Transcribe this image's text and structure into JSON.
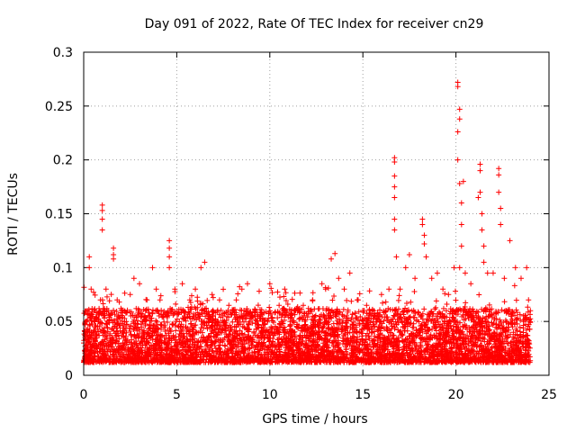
{
  "chart_data": {
    "type": "scatter",
    "title": "Day 091 of 2022, Rate Of TEC Index for receiver cn29",
    "xlabel": "GPS time / hours",
    "ylabel": "ROTI / TECUs",
    "xlim": [
      0,
      25
    ],
    "ylim": [
      0,
      0.3
    ],
    "x_ticks": [
      "0",
      "5",
      "10",
      "15",
      "20",
      "25"
    ],
    "y_ticks": [
      "0",
      "0.05",
      "0.1",
      "0.15",
      "0.2",
      "0.25",
      "0.3"
    ],
    "grid": true,
    "marker": "plus",
    "color": "#ff0000",
    "baseline_points": [
      [
        0.0,
        0.03
      ],
      [
        0.2,
        0.06
      ],
      [
        0.3,
        0.11
      ],
      [
        0.3,
        0.1
      ],
      [
        0.4,
        0.08
      ],
      [
        0.6,
        0.05
      ],
      [
        0.9,
        0.07
      ],
      [
        1.0,
        0.158
      ],
      [
        1.0,
        0.153
      ],
      [
        1.0,
        0.145
      ],
      [
        1.0,
        0.135
      ],
      [
        1.2,
        0.08
      ],
      [
        1.6,
        0.118
      ],
      [
        1.6,
        0.112
      ],
      [
        1.6,
        0.108
      ],
      [
        1.8,
        0.07
      ],
      [
        2.0,
        0.062
      ],
      [
        2.5,
        0.075
      ],
      [
        2.7,
        0.09
      ],
      [
        3.0,
        0.085
      ],
      [
        3.4,
        0.07
      ],
      [
        3.7,
        0.1
      ],
      [
        3.9,
        0.08
      ],
      [
        4.1,
        0.07
      ],
      [
        4.6,
        0.125
      ],
      [
        4.6,
        0.118
      ],
      [
        4.6,
        0.11
      ],
      [
        4.6,
        0.1
      ],
      [
        4.9,
        0.08
      ],
      [
        5.3,
        0.085
      ],
      [
        5.7,
        0.07
      ],
      [
        6.0,
        0.08
      ],
      [
        6.3,
        0.1
      ],
      [
        6.5,
        0.105
      ],
      [
        6.9,
        0.075
      ],
      [
        7.3,
        0.07
      ],
      [
        7.8,
        0.065
      ],
      [
        8.2,
        0.07
      ],
      [
        8.5,
        0.08
      ],
      [
        8.8,
        0.085
      ],
      [
        9.2,
        0.06
      ],
      [
        9.6,
        0.05
      ],
      [
        10.0,
        0.085
      ],
      [
        10.5,
        0.065
      ],
      [
        10.8,
        0.08
      ],
      [
        11.3,
        0.06
      ],
      [
        11.8,
        0.065
      ],
      [
        12.3,
        0.07
      ],
      [
        12.8,
        0.085
      ],
      [
        13.0,
        0.08
      ],
      [
        13.3,
        0.108
      ],
      [
        13.5,
        0.113
      ],
      [
        13.7,
        0.09
      ],
      [
        14.0,
        0.08
      ],
      [
        14.3,
        0.095
      ],
      [
        14.7,
        0.07
      ],
      [
        15.2,
        0.065
      ],
      [
        15.6,
        0.06
      ],
      [
        16.0,
        0.075
      ],
      [
        16.4,
        0.08
      ],
      [
        16.7,
        0.202
      ],
      [
        16.7,
        0.198
      ],
      [
        16.7,
        0.185
      ],
      [
        16.7,
        0.175
      ],
      [
        16.7,
        0.165
      ],
      [
        16.7,
        0.145
      ],
      [
        16.7,
        0.135
      ],
      [
        16.8,
        0.11
      ],
      [
        17.0,
        0.08
      ],
      [
        17.3,
        0.1
      ],
      [
        17.5,
        0.112
      ],
      [
        17.8,
        0.09
      ],
      [
        18.2,
        0.145
      ],
      [
        18.2,
        0.14
      ],
      [
        18.3,
        0.13
      ],
      [
        18.3,
        0.122
      ],
      [
        18.4,
        0.11
      ],
      [
        18.7,
        0.09
      ],
      [
        19.0,
        0.095
      ],
      [
        19.3,
        0.08
      ],
      [
        19.6,
        0.075
      ],
      [
        19.9,
        0.1
      ],
      [
        20.1,
        0.272
      ],
      [
        20.1,
        0.268
      ],
      [
        20.2,
        0.247
      ],
      [
        20.2,
        0.238
      ],
      [
        20.1,
        0.226
      ],
      [
        20.1,
        0.2
      ],
      [
        20.2,
        0.178
      ],
      [
        20.3,
        0.16
      ],
      [
        20.3,
        0.14
      ],
      [
        20.3,
        0.12
      ],
      [
        20.2,
        0.1
      ],
      [
        20.4,
        0.18
      ],
      [
        20.5,
        0.095
      ],
      [
        20.8,
        0.085
      ],
      [
        21.2,
        0.165
      ],
      [
        21.3,
        0.196
      ],
      [
        21.3,
        0.19
      ],
      [
        21.3,
        0.17
      ],
      [
        21.4,
        0.15
      ],
      [
        21.4,
        0.135
      ],
      [
        21.5,
        0.12
      ],
      [
        21.5,
        0.105
      ],
      [
        21.7,
        0.095
      ],
      [
        22.0,
        0.095
      ],
      [
        22.3,
        0.192
      ],
      [
        22.3,
        0.186
      ],
      [
        22.3,
        0.17
      ],
      [
        22.4,
        0.155
      ],
      [
        22.4,
        0.14
      ],
      [
        22.6,
        0.09
      ],
      [
        22.9,
        0.125
      ],
      [
        23.2,
        0.1
      ],
      [
        23.5,
        0.09
      ],
      [
        23.8,
        0.1
      ],
      [
        23.9,
        0.07
      ],
      [
        24.0,
        0.06
      ]
    ],
    "notes_density": "dense band of points between about 0.01 and 0.06 across the full 0-24 hour range"
  }
}
